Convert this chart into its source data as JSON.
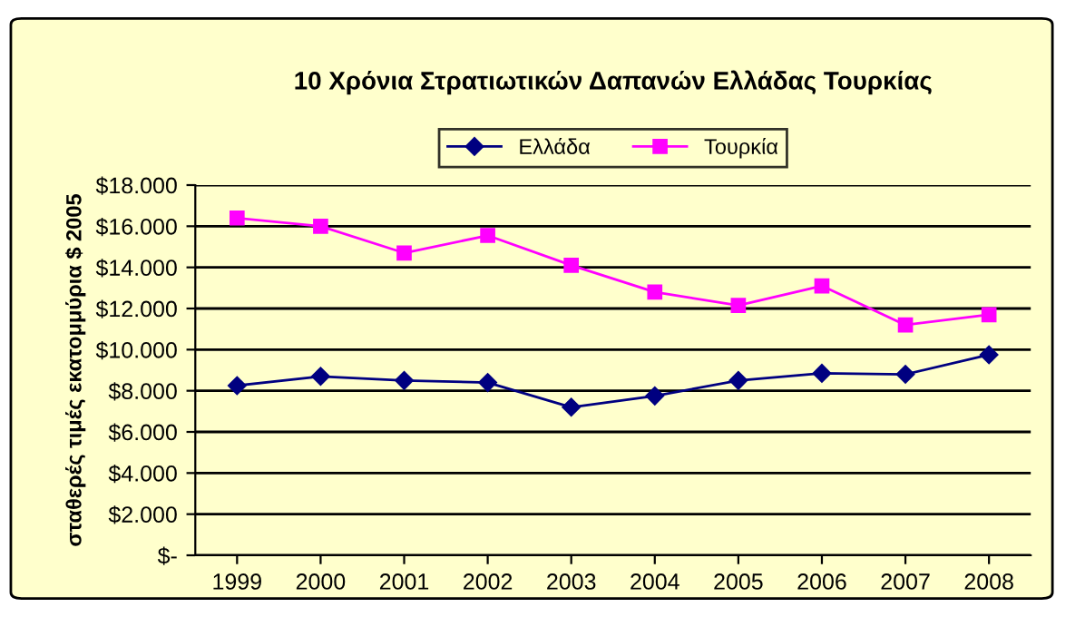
{
  "chart_data": {
    "type": "line",
    "title": "10 Χρόνια Στρατιωτικών Δαπανών Ελλάδας Τουρκίας",
    "ylabel": "σταθερές τιμές εκατομμύρια $ 2005",
    "categories": [
      "1999",
      "2000",
      "2001",
      "2002",
      "2003",
      "2004",
      "2005",
      "2006",
      "2007",
      "2008"
    ],
    "series": [
      {
        "name": "Ελλάδα",
        "color": "#000080",
        "marker": "diamond",
        "values": [
          8250,
          8700,
          8500,
          8400,
          7200,
          7750,
          8500,
          8850,
          8800,
          9750
        ]
      },
      {
        "name": "Τουρκία",
        "color": "#ff00ff",
        "marker": "square",
        "values": [
          16400,
          16000,
          14700,
          15550,
          14100,
          12800,
          12150,
          13100,
          11200,
          11700
        ]
      }
    ],
    "ylim": [
      0,
      18000
    ],
    "yticks": [
      {
        "value": 0,
        "label": "$-"
      },
      {
        "value": 2000,
        "label": "$2.000"
      },
      {
        "value": 4000,
        "label": "$4.000"
      },
      {
        "value": 6000,
        "label": "$6.000"
      },
      {
        "value": 8000,
        "label": "$8.000"
      },
      {
        "value": 10000,
        "label": "$10.000"
      },
      {
        "value": 12000,
        "label": "$12.000"
      },
      {
        "value": 14000,
        "label": "$14.000"
      },
      {
        "value": 16000,
        "label": "$16.000"
      },
      {
        "value": 18000,
        "label": "$18.000"
      }
    ],
    "grid": "y",
    "legend": "top",
    "line_style": "solid"
  }
}
